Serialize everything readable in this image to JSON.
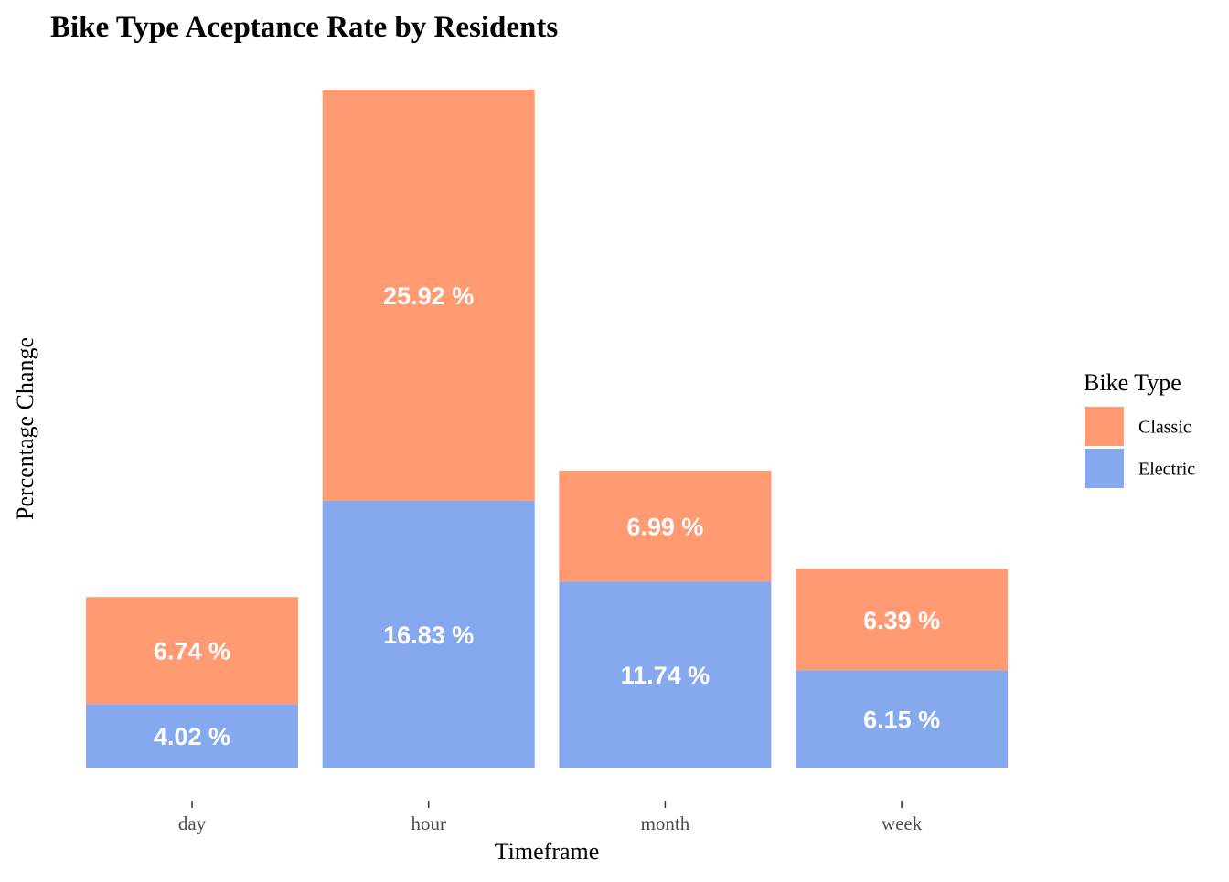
{
  "chart_data": {
    "type": "bar",
    "stacked": true,
    "title": "Bike Type Aceptance Rate by Residents",
    "xlabel": "Timeframe",
    "ylabel": "Percentage Change",
    "categories": [
      "day",
      "hour",
      "month",
      "week"
    ],
    "ylim": [
      0,
      42.75
    ],
    "grid": false,
    "legend_position": "right",
    "legend_title": "Bike Type",
    "series": [
      {
        "name": "Electric",
        "color": "#85A8EE",
        "values": [
          4.02,
          16.83,
          11.74,
          6.15
        ],
        "labels": [
          "4.02 %",
          "16.83 %",
          "11.74 %",
          "6.15 %"
        ]
      },
      {
        "name": "Classic",
        "color": "#FF9A73",
        "values": [
          6.74,
          25.92,
          6.99,
          6.39
        ],
        "labels": [
          "6.74 %",
          "25.92 %",
          "6.99 %",
          "6.39 %"
        ]
      }
    ],
    "legend": [
      {
        "name": "Classic",
        "color": "#FF9A73"
      },
      {
        "name": "Electric",
        "color": "#85A8EE"
      }
    ]
  }
}
